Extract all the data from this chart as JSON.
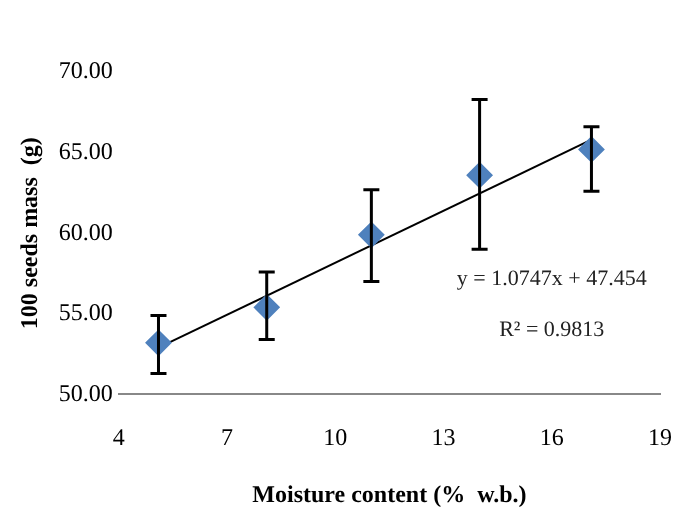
{
  "chart_data": {
    "type": "scatter",
    "xlabel": "Moisture content (%  w.b.)",
    "ylabel": "100 seeds mass  (g)",
    "xlim": [
      4,
      19
    ],
    "xticks": [
      4,
      7,
      10,
      13,
      16,
      19
    ],
    "ylim": [
      50,
      70
    ],
    "yticks": [
      {
        "value": 50,
        "label": "50.00"
      },
      {
        "value": 55,
        "label": "55.00"
      },
      {
        "value": 60,
        "label": "60.00"
      },
      {
        "value": 65,
        "label": "65.00"
      },
      {
        "value": 70,
        "label": "70.00"
      }
    ],
    "grid": false,
    "legend": false,
    "marker": "diamond",
    "series": [
      {
        "color": "#4f81bd",
        "x": [
          5.1,
          8.1,
          11.0,
          14.0,
          17.1
        ],
        "values": [
          53.2,
          55.4,
          59.9,
          63.6,
          65.2
        ],
        "errors": [
          [
            51.3,
            54.9
          ],
          [
            53.4,
            57.6
          ],
          [
            57.0,
            62.7
          ],
          [
            59.0,
            68.3
          ],
          [
            62.6,
            66.6
          ]
        ]
      },
      {
        "type": "line",
        "marker": "none",
        "color": "#000000",
        "x": [
          5.1,
          17.1
        ],
        "values": [
          52.9,
          65.8
        ]
      }
    ],
    "annotations": [
      "y = 1.0747x + 47.454",
      "R² = 0.9813"
    ]
  }
}
